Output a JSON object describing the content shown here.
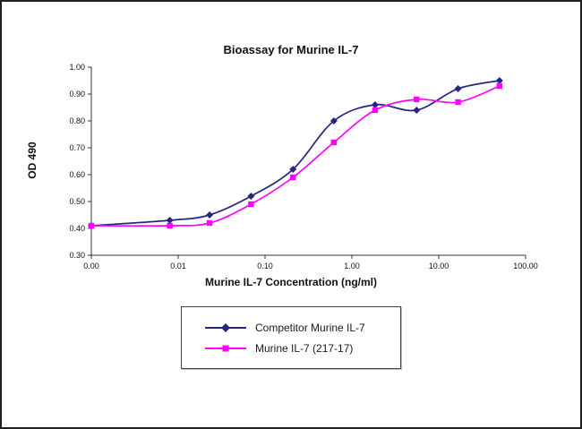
{
  "window": {
    "background": "#ffffff",
    "border_color": "#1f1f1f"
  },
  "chart_data": {
    "type": "line",
    "title": "Bioassay for Murine IL-7",
    "xlabel": "Murine IL-7 Concentration (ng/ml)",
    "ylabel": "OD 490",
    "x_scale": "log",
    "x_log_min_exp": -3,
    "x_log_max_exp": 2,
    "x_tick_labels": [
      "0.00",
      "0.01",
      "0.10",
      "1.00",
      "10.00",
      "100.00"
    ],
    "ylim": [
      0.3,
      1.0
    ],
    "y_tick_step": 0.1,
    "y_tick_labels": [
      "0.30",
      "0.40",
      "0.50",
      "0.60",
      "0.70",
      "0.80",
      "0.90",
      "1.00"
    ],
    "grid": false,
    "legend_position": "bottom-box",
    "x": [
      0,
      0.008,
      0.023,
      0.069,
      0.21,
      0.62,
      1.85,
      5.56,
      16.7,
      50
    ],
    "series": [
      {
        "name": "Competitor Murine IL-7",
        "color": "#26267e",
        "marker": "diamond",
        "values": [
          0.41,
          0.43,
          0.45,
          0.52,
          0.62,
          0.8,
          0.86,
          0.84,
          0.92,
          0.95
        ]
      },
      {
        "name": "Murine IL-7 (217-17)",
        "color": "#ff00ff",
        "marker": "square",
        "values": [
          0.41,
          0.41,
          0.42,
          0.49,
          0.59,
          0.72,
          0.84,
          0.88,
          0.87,
          0.93
        ]
      }
    ]
  },
  "legend": {
    "items": [
      {
        "label": "Competitor Murine IL-7",
        "color": "#26267e",
        "marker": "diamond"
      },
      {
        "label": "Murine IL-7 (217-17)",
        "color": "#ff00ff",
        "marker": "square"
      }
    ]
  }
}
